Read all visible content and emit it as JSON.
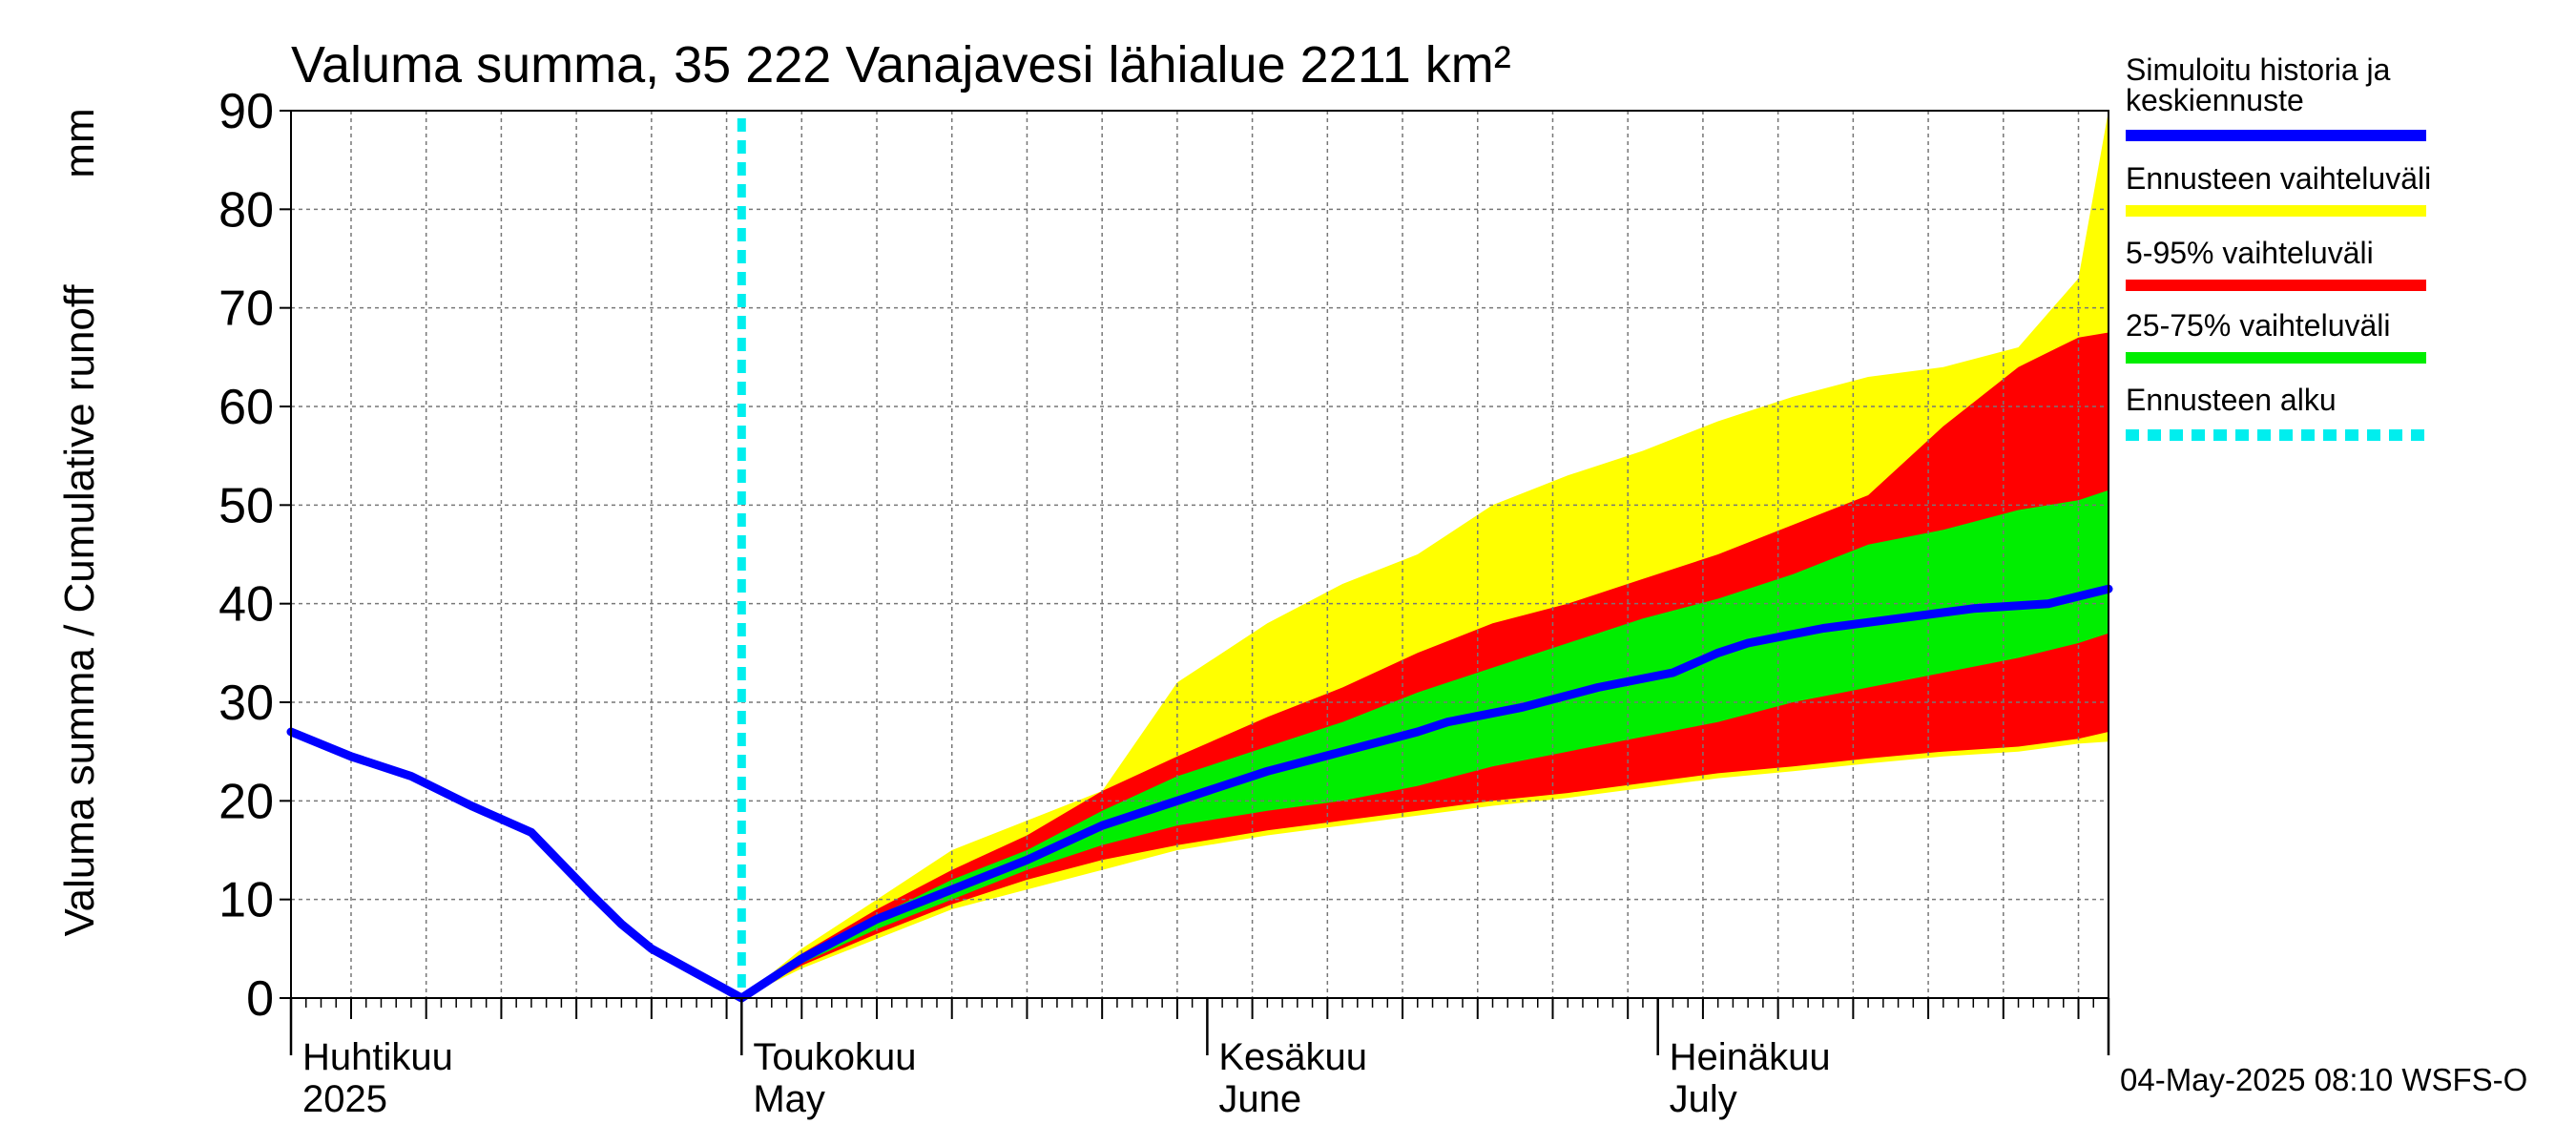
{
  "chart_data": {
    "type": "area",
    "title": "Valuma summa, 35 222 Vanajavesi lähialue 2211 km²",
    "ylabel": "Valuma summa / Cumulative runoff",
    "yunit": "mm",
    "ylim": [
      0,
      90
    ],
    "yticks": [
      0,
      10,
      20,
      30,
      40,
      50,
      60,
      70,
      80,
      90
    ],
    "xlim": [
      "2025-04-01",
      "2025-07-31"
    ],
    "grid": true,
    "legend_position": "right",
    "month_labels": [
      {
        "date": "2025-04-01",
        "fi": "Huhtikuu",
        "en": "2025"
      },
      {
        "date": "2025-05-01",
        "fi": "Toukokuu",
        "en": "May"
      },
      {
        "date": "2025-06-01",
        "fi": "Kesäkuu",
        "en": "June"
      },
      {
        "date": "2025-07-01",
        "fi": "Heinäkuu",
        "en": "July"
      }
    ],
    "forecast_start": "2025-05-01",
    "legend": [
      {
        "label": "Simuloitu historia ja keskiennuste",
        "color": "#0000ff",
        "style": "solid"
      },
      {
        "label": "Ennusteen vaihteluväli",
        "color": "#ffff00",
        "style": "solid"
      },
      {
        "label": "5-95% vaihteluväli",
        "color": "#ff0000",
        "style": "solid"
      },
      {
        "label": "25-75% vaihteluväli",
        "color": "#00ee00",
        "style": "solid"
      },
      {
        "label": "Ennusteen alku",
        "color": "#00eeee",
        "style": "dashed"
      }
    ],
    "series": [
      {
        "name": "Simuloitu historia ja keskiennuste",
        "color": "#0000ff",
        "x": [
          "2025-04-01",
          "2025-04-05",
          "2025-04-09",
          "2025-04-13",
          "2025-04-17",
          "2025-04-21",
          "2025-04-23",
          "2025-04-25",
          "2025-04-28",
          "2025-05-01",
          "2025-05-05",
          "2025-05-10",
          "2025-05-15",
          "2025-05-20",
          "2025-05-25",
          "2025-05-30",
          "2025-06-05",
          "2025-06-10",
          "2025-06-15",
          "2025-06-17",
          "2025-06-22",
          "2025-06-27",
          "2025-07-02",
          "2025-07-05",
          "2025-07-07",
          "2025-07-12",
          "2025-07-17",
          "2025-07-22",
          "2025-07-27",
          "2025-07-31"
        ],
        "y": [
          27,
          24.5,
          22.5,
          19.5,
          16.8,
          10.5,
          7.5,
          5,
          2.5,
          0,
          4,
          8,
          11,
          14,
          17.5,
          20,
          23,
          25,
          27,
          28,
          29.5,
          31.5,
          33,
          35,
          36,
          37.5,
          38.5,
          39.5,
          40,
          41.5
        ]
      },
      {
        "name": "Ennusteen vaihteluväli max",
        "color": "#ffff00",
        "x": [
          "2025-05-01",
          "2025-05-05",
          "2025-05-10",
          "2025-05-15",
          "2025-05-20",
          "2025-05-25",
          "2025-05-30",
          "2025-06-05",
          "2025-06-10",
          "2025-06-15",
          "2025-06-20",
          "2025-06-25",
          "2025-06-30",
          "2025-07-05",
          "2025-07-10",
          "2025-07-15",
          "2025-07-20",
          "2025-07-25",
          "2025-07-29",
          "2025-07-31"
        ],
        "y": [
          0,
          5,
          10,
          15,
          18,
          21,
          32,
          38,
          42,
          45,
          50,
          53,
          55.5,
          58.5,
          61,
          63,
          64,
          66,
          73,
          90
        ]
      },
      {
        "name": "5-95% vaihteluväli max",
        "color": "#ff0000",
        "x": [
          "2025-05-01",
          "2025-05-05",
          "2025-05-10",
          "2025-05-15",
          "2025-05-20",
          "2025-05-25",
          "2025-05-30",
          "2025-06-05",
          "2025-06-10",
          "2025-06-15",
          "2025-06-20",
          "2025-06-25",
          "2025-06-30",
          "2025-07-05",
          "2025-07-10",
          "2025-07-15",
          "2025-07-20",
          "2025-07-25",
          "2025-07-29",
          "2025-07-31"
        ],
        "y": [
          0,
          4.5,
          9,
          13,
          16.5,
          21,
          24.5,
          28.5,
          31.5,
          35,
          38,
          40,
          42.5,
          45,
          48,
          51,
          58,
          64,
          67,
          67.5
        ]
      },
      {
        "name": "25-75% vaihteluväli max",
        "color": "#00ee00",
        "x": [
          "2025-05-01",
          "2025-05-05",
          "2025-05-10",
          "2025-05-15",
          "2025-05-20",
          "2025-05-25",
          "2025-05-30",
          "2025-06-05",
          "2025-06-10",
          "2025-06-15",
          "2025-06-20",
          "2025-06-25",
          "2025-06-30",
          "2025-07-05",
          "2025-07-10",
          "2025-07-15",
          "2025-07-20",
          "2025-07-25",
          "2025-07-29",
          "2025-07-31"
        ],
        "y": [
          0,
          4,
          8.3,
          12,
          15,
          19,
          22.5,
          25.5,
          28,
          31,
          33.5,
          36,
          38.5,
          40.5,
          43,
          46,
          47.5,
          49.5,
          50.5,
          51.5
        ]
      },
      {
        "name": "25-75% vaihteluväli min",
        "color": "#00ee00",
        "x": [
          "2025-05-01",
          "2025-05-05",
          "2025-05-10",
          "2025-05-15",
          "2025-05-20",
          "2025-05-25",
          "2025-05-30",
          "2025-06-05",
          "2025-06-10",
          "2025-06-15",
          "2025-06-20",
          "2025-06-25",
          "2025-06-30",
          "2025-07-05",
          "2025-07-10",
          "2025-07-15",
          "2025-07-20",
          "2025-07-25",
          "2025-07-29",
          "2025-07-31"
        ],
        "y": [
          0,
          3.5,
          7,
          10,
          13,
          15.5,
          17.5,
          19,
          20,
          21.5,
          23.5,
          25,
          26.5,
          28,
          30,
          31.5,
          33,
          34.5,
          36,
          37
        ]
      },
      {
        "name": "5-95% vaihteluväli min",
        "color": "#ff0000",
        "x": [
          "2025-05-01",
          "2025-05-05",
          "2025-05-10",
          "2025-05-15",
          "2025-05-20",
          "2025-05-25",
          "2025-05-30",
          "2025-06-05",
          "2025-06-10",
          "2025-06-15",
          "2025-06-20",
          "2025-06-25",
          "2025-06-30",
          "2025-07-05",
          "2025-07-10",
          "2025-07-15",
          "2025-07-20",
          "2025-07-25",
          "2025-07-29",
          "2025-07-31"
        ],
        "y": [
          0,
          3.3,
          6.5,
          9.5,
          12,
          14,
          15.5,
          17,
          18,
          19,
          20,
          20.8,
          21.8,
          22.8,
          23.5,
          24.3,
          25,
          25.5,
          26.3,
          27
        ]
      },
      {
        "name": "Ennusteen vaihteluväli min",
        "color": "#ffff00",
        "x": [
          "2025-05-01",
          "2025-05-05",
          "2025-05-10",
          "2025-05-15",
          "2025-05-20",
          "2025-05-25",
          "2025-05-30",
          "2025-06-05",
          "2025-06-10",
          "2025-06-15",
          "2025-06-20",
          "2025-06-25",
          "2025-06-30",
          "2025-07-05",
          "2025-07-10",
          "2025-07-15",
          "2025-07-20",
          "2025-07-25",
          "2025-07-29",
          "2025-07-31"
        ],
        "y": [
          0,
          3,
          6,
          9,
          11,
          13,
          15,
          16.5,
          17.5,
          18.5,
          19.5,
          20.3,
          21.3,
          22.3,
          23,
          23.8,
          24.5,
          25,
          25.8,
          26
        ]
      }
    ]
  },
  "footer": {
    "timestamp": "04-May-2025 08:10 WSFS-O"
  }
}
